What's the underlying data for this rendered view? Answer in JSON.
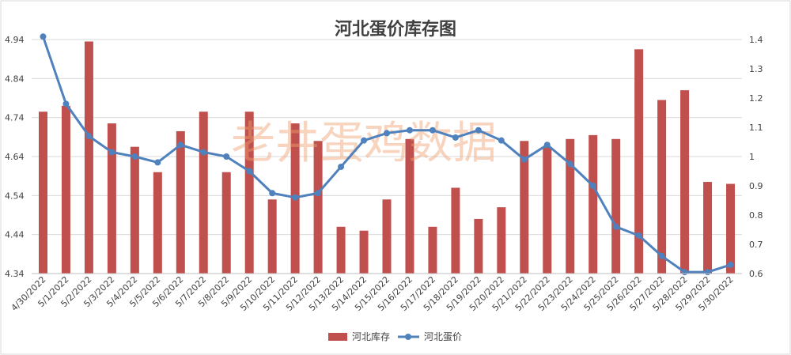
{
  "chart_data": {
    "type": "bar",
    "title": "河北蛋价库存图",
    "watermark": "老井蛋鸡数据",
    "categories": [
      "4/30/2022",
      "5/1/2022",
      "5/2/2022",
      "5/3/2022",
      "5/4/2022",
      "5/5/2022",
      "5/6/2022",
      "5/7/2022",
      "5/8/2022",
      "5/9/2022",
      "5/10/2022",
      "5/11/2022",
      "5/12/2022",
      "5/13/2022",
      "5/14/2022",
      "5/15/2022",
      "5/16/2022",
      "5/17/2022",
      "5/18/2022",
      "5/19/2022",
      "5/20/2022",
      "5/21/2022",
      "5/22/2022",
      "5/23/2022",
      "5/24/2022",
      "5/25/2022",
      "5/26/2022",
      "5/27/2022",
      "5/28/2022",
      "5/29/2022",
      "5/30/2022"
    ],
    "series": [
      {
        "name": "河北库存",
        "type": "bar",
        "axis": "left",
        "color": "#c0504d",
        "values": [
          4.755,
          4.77,
          4.935,
          4.725,
          4.665,
          4.6,
          4.705,
          4.755,
          4.6,
          4.755,
          4.53,
          4.725,
          4.68,
          4.46,
          4.45,
          4.53,
          4.685,
          4.46,
          4.56,
          4.48,
          4.51,
          4.68,
          4.665,
          4.685,
          4.695,
          4.685,
          4.915,
          4.785,
          4.81,
          4.575,
          4.57
        ]
      },
      {
        "name": "河北蛋价",
        "type": "line",
        "axis": "right",
        "color": "#4f81bd",
        "values": [
          1.41,
          1.18,
          1.07,
          1.015,
          1.0,
          0.98,
          1.04,
          1.015,
          1.0,
          0.95,
          0.875,
          0.86,
          0.875,
          0.965,
          1.055,
          1.08,
          1.09,
          1.09,
          1.065,
          1.09,
          1.055,
          0.99,
          1.04,
          0.975,
          0.9,
          0.76,
          0.73,
          0.66,
          0.605,
          0.605,
          0.63
        ]
      }
    ],
    "y_left": {
      "min": 4.34,
      "max": 4.94,
      "ticks": [
        "4.34",
        "4.44",
        "4.54",
        "4.64",
        "4.74",
        "4.84",
        "4.94"
      ]
    },
    "y_right": {
      "min": 0.6,
      "max": 1.4,
      "ticks": [
        "0.6",
        "0.7",
        "0.8",
        "0.9",
        "1",
        "1.1",
        "1.2",
        "1.3",
        "1.4"
      ]
    },
    "grid": true,
    "legend_position": "bottom"
  }
}
